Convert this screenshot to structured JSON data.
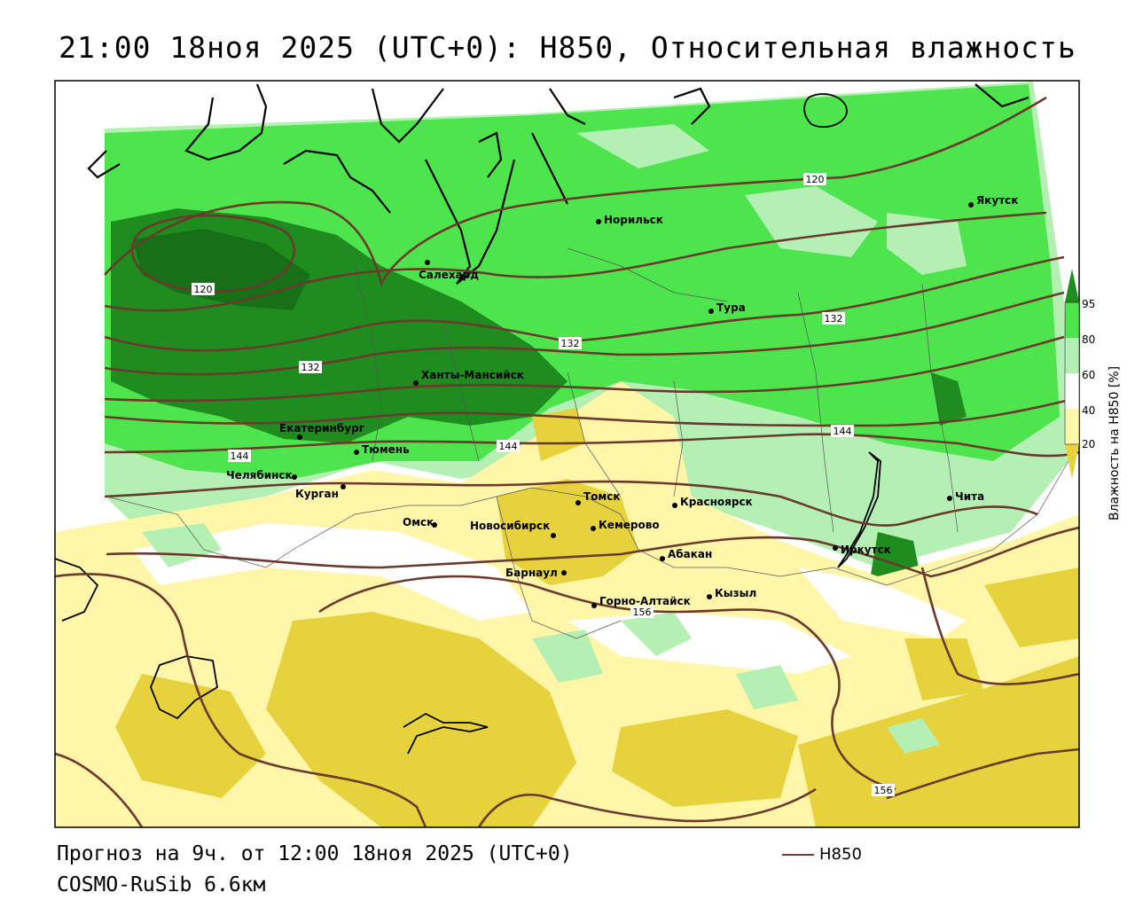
{
  "title": "21:00 18ноя 2025 (UTC+0): H850, Относительная влажность",
  "footer": {
    "forecast": "Прогноз на 9ч. от 12:00 18ноя 2025 (UTC+0)",
    "model": "COSMO-RuSib 6.6км",
    "contour_legend": "H850"
  },
  "colorbar": {
    "title": "Влажность на H850 [%]",
    "ticks": [
      "95",
      "80",
      "60",
      "40",
      "20"
    ],
    "colors": {
      "c95": "#1e8c1e",
      "c80": "#4ee44e",
      "c60": "#b4f0b4",
      "c40": "#ffffff",
      "c20": "#fff6aa",
      "c0": "#e6d23c"
    }
  },
  "cities": [
    {
      "name": "Якутск"
    },
    {
      "name": "Норильск"
    },
    {
      "name": "Салехард"
    },
    {
      "name": "Тура"
    },
    {
      "name": "Ханты-Мансийск"
    },
    {
      "name": "Екатеринбург"
    },
    {
      "name": "Тюмень"
    },
    {
      "name": "Челябинск"
    },
    {
      "name": "Курган"
    },
    {
      "name": "Омск"
    },
    {
      "name": "Новосибирск"
    },
    {
      "name": "Томск"
    },
    {
      "name": "Кемерово"
    },
    {
      "name": "Красноярск"
    },
    {
      "name": "Барнаул"
    },
    {
      "name": "Абакан"
    },
    {
      "name": "Горно-Алтайск"
    },
    {
      "name": "Кызыл"
    },
    {
      "name": "Иркутск"
    },
    {
      "name": "Чита"
    }
  ],
  "contour_labels": [
    "120",
    "120",
    "132",
    "132",
    "132",
    "144",
    "144",
    "144",
    "156",
    "156"
  ]
}
